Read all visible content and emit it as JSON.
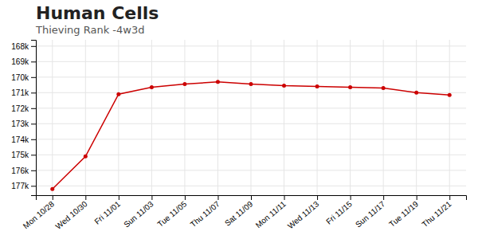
{
  "chart_data": {
    "type": "line",
    "title": "Human Cells",
    "subtitle": "Thieving Rank -4w3d",
    "categories": [
      "Mon 10/28",
      "Wed 10/30",
      "Fri 11/01",
      "Sun 11/03",
      "Tue 11/05",
      "Thu 11/07",
      "Sat 11/09",
      "Mon 11/11",
      "Wed 11/13",
      "Fri 11/15",
      "Sun 11/17",
      "Tue 11/19",
      "Thu 11/21"
    ],
    "values": [
      177200,
      175100,
      171100,
      170650,
      170450,
      170300,
      170450,
      170550,
      170600,
      170650,
      170700,
      171000,
      171150
    ],
    "color": "#cc0000",
    "marker": "circle",
    "ylim": [
      177600,
      167600
    ],
    "yticks": [
      {
        "value": 168000,
        "label": "168k"
      },
      {
        "value": 169000,
        "label": "169k"
      },
      {
        "value": 170000,
        "label": "170k"
      },
      {
        "value": 171000,
        "label": "171k"
      },
      {
        "value": 172000,
        "label": "172k"
      },
      {
        "value": 173000,
        "label": "173k"
      },
      {
        "value": 174000,
        "label": "174k"
      },
      {
        "value": 175000,
        "label": "175k"
      },
      {
        "value": 176000,
        "label": "176k"
      },
      {
        "value": 177000,
        "label": "177k"
      }
    ],
    "grid": true
  }
}
